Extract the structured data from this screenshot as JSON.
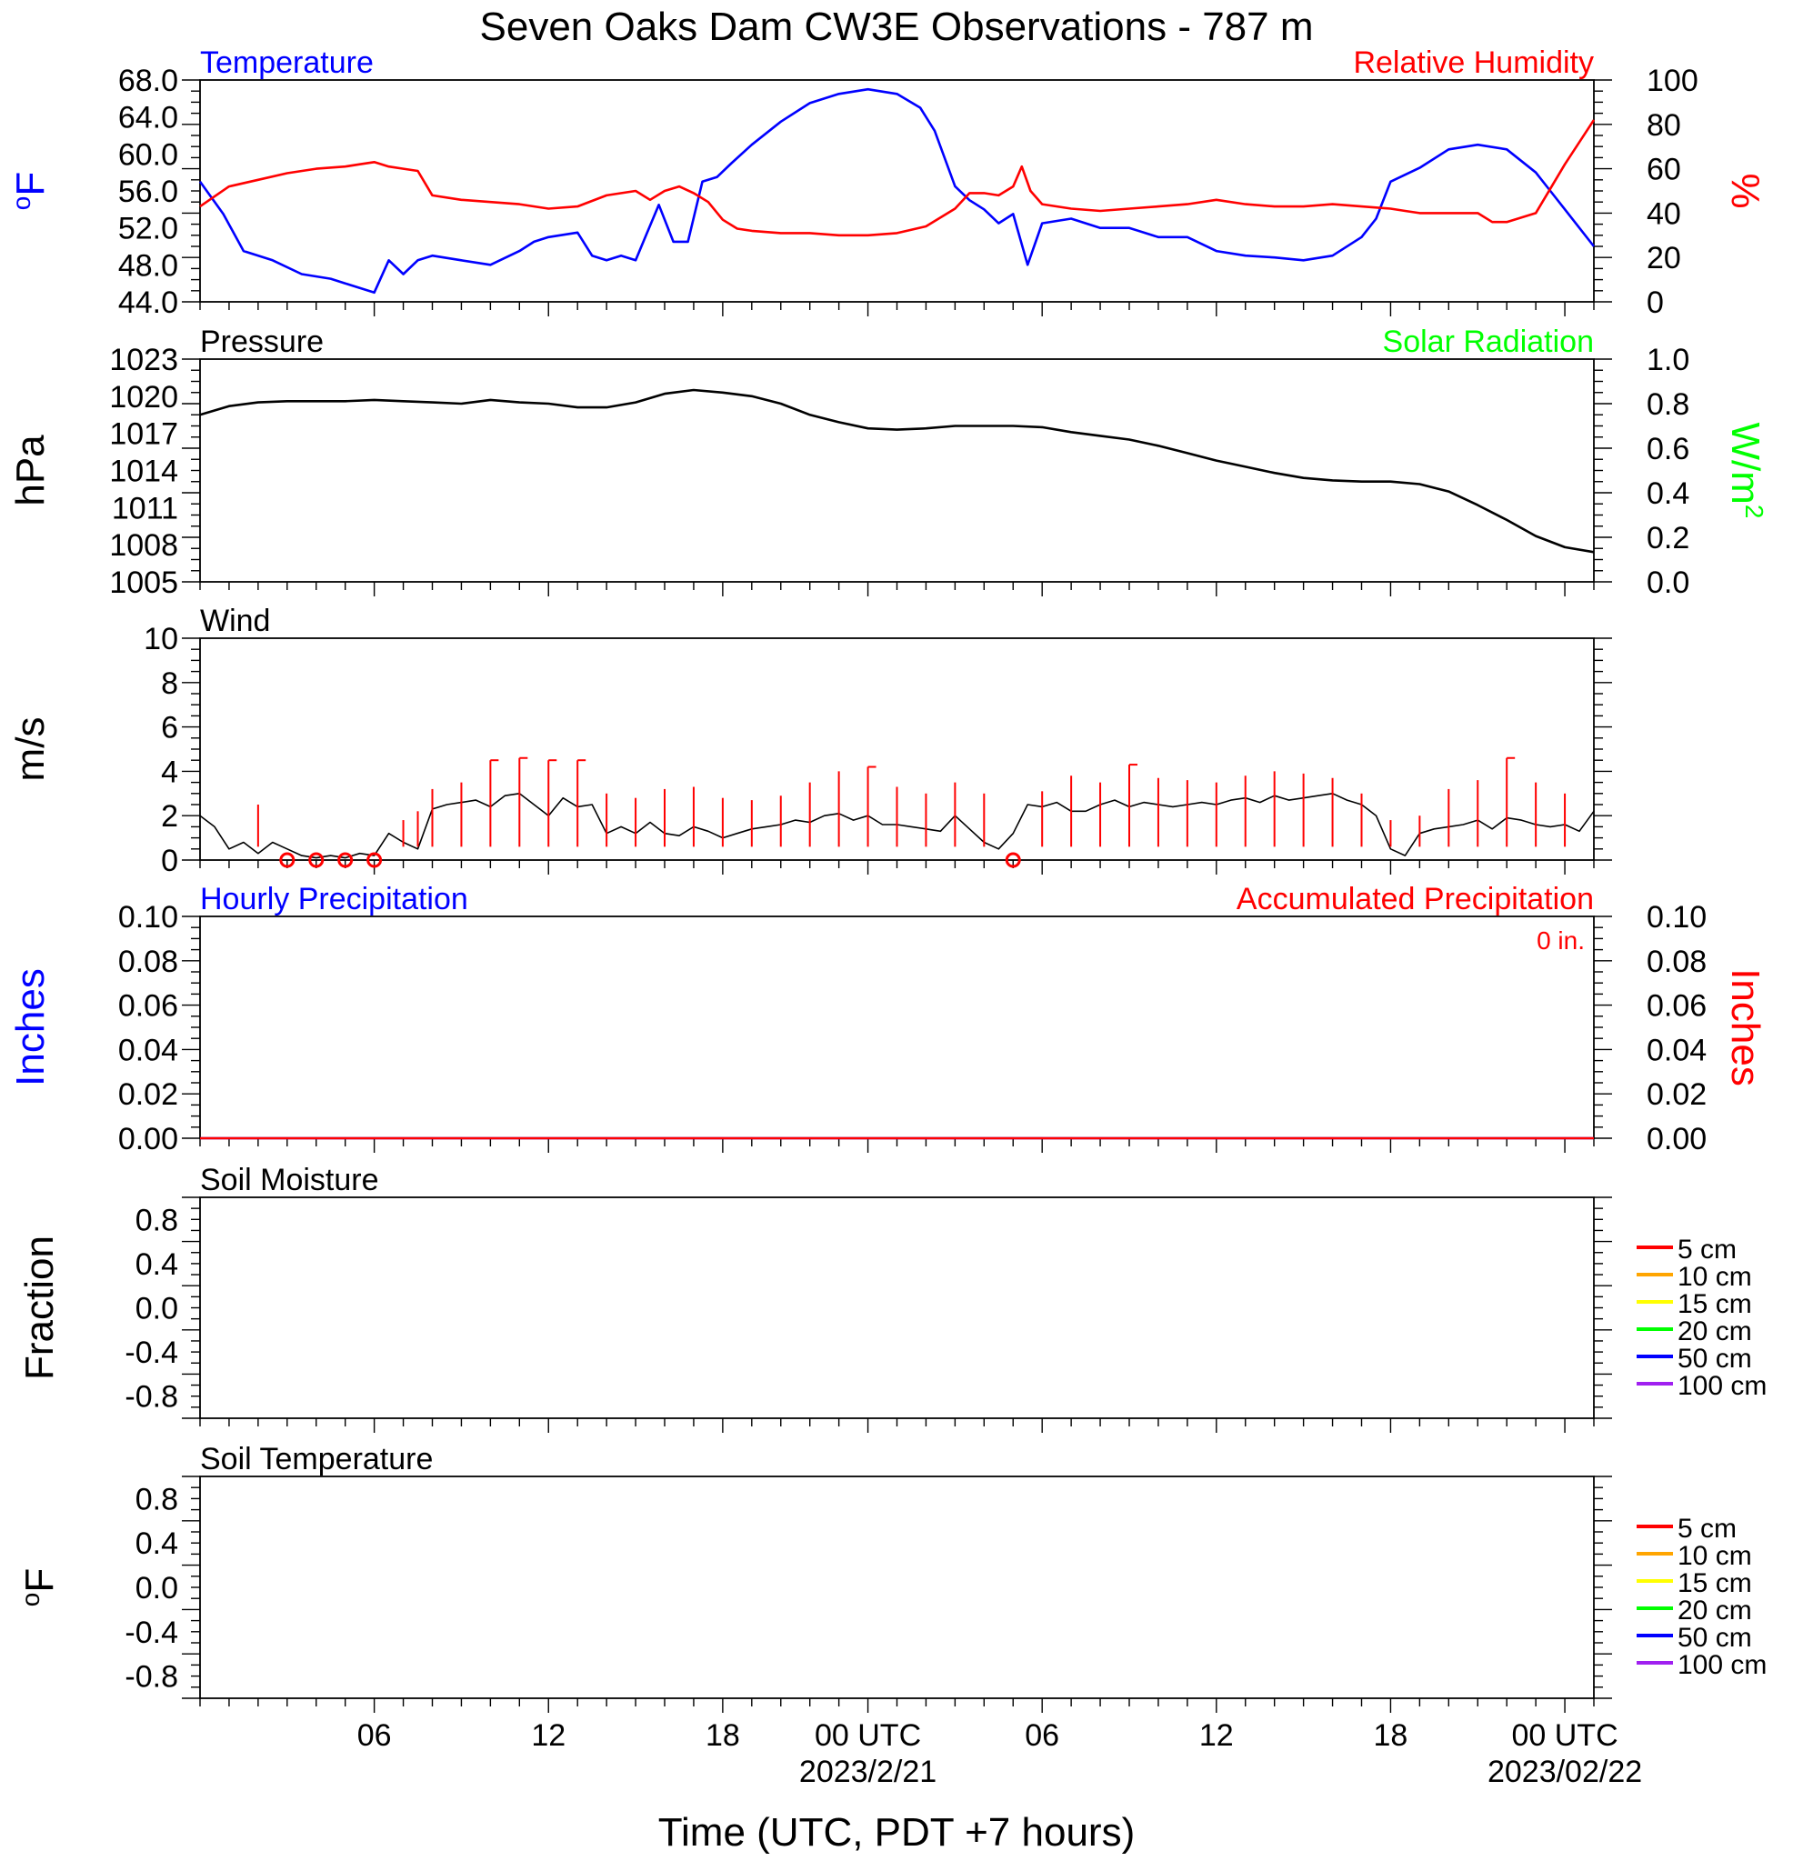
{
  "chart_data": {
    "type": "line",
    "title": "Seven Oaks Dam CW3E Observations - 787 m",
    "time_axis": {
      "label": "Time (UTC, PDT +7 hours)",
      "range_hours": [
        0,
        48
      ],
      "ticks": [
        {
          "hour": 6,
          "label": "06",
          "date": ""
        },
        {
          "hour": 12,
          "label": "12",
          "date": ""
        },
        {
          "hour": 18,
          "label": "18",
          "date": ""
        },
        {
          "hour": 23,
          "label": "00 UTC",
          "date": "2023/2/21"
        },
        {
          "hour": 29,
          "label": "06",
          "date": ""
        },
        {
          "hour": 35,
          "label": "12",
          "date": ""
        },
        {
          "hour": 41,
          "label": "18",
          "date": ""
        },
        {
          "hour": 47,
          "label": "00 UTC",
          "date": "2023/02/22"
        }
      ]
    },
    "panels": [
      {
        "id": "temp_rh",
        "title_left": "Temperature",
        "title_left_color": "#0000ff",
        "title_right": "Relative Humidity",
        "title_right_color": "#ff0000",
        "ylabel_left": "oF",
        "ylabel_right": "%",
        "ylim_left": [
          44,
          68
        ],
        "ylim_right": [
          0,
          100
        ],
        "yticks_left": [
          "44.0",
          "48.0",
          "52.0",
          "56.0",
          "60.0",
          "64.0",
          "68.0"
        ],
        "yticks_right": [
          "0",
          "20",
          "40",
          "60",
          "80",
          "100"
        ],
        "series": [
          {
            "name": "Temperature",
            "axis": "left",
            "color": "#0000ff",
            "x": [
              0,
              0.8,
              1.5,
              2.5,
              3.5,
              4.5,
              5.0,
              5.5,
              6.0,
              6.5,
              7.0,
              7.5,
              8.0,
              9.0,
              10.0,
              11.0,
              11.5,
              12.0,
              13.0,
              13.5,
              14.0,
              14.5,
              15.0,
              15.4,
              15.8,
              16.3,
              16.8,
              17.3,
              17.8,
              18.3,
              19.0,
              20.0,
              21.0,
              22.0,
              23.0,
              24.0,
              24.8,
              25.3,
              26.0,
              26.5,
              27.0,
              27.5,
              28.0,
              28.5,
              29.0,
              30.0,
              31.0,
              32.0,
              33.0,
              34.0,
              35.0,
              36.0,
              37.0,
              38.0,
              39.0,
              40.0,
              40.5,
              41.0,
              42.0,
              43.0,
              44.0,
              45.0,
              46.0,
              46.5,
              47.0,
              48.0
            ],
            "y": [
              57.0,
              53.5,
              49.5,
              48.5,
              47.0,
              46.5,
              46.0,
              45.5,
              45.0,
              48.5,
              47.0,
              48.5,
              49.0,
              48.5,
              48.0,
              49.5,
              50.5,
              51.0,
              51.5,
              49.0,
              48.5,
              49.0,
              48.5,
              51.5,
              54.5,
              50.5,
              50.5,
              57.0,
              57.5,
              59.0,
              61.0,
              63.5,
              65.5,
              66.5,
              67.0,
              66.5,
              65.0,
              62.5,
              56.5,
              55.0,
              54.0,
              52.5,
              53.5,
              48.0,
              52.5,
              53.0,
              52.0,
              52.0,
              51.0,
              51.0,
              49.5,
              49.0,
              48.8,
              48.5,
              49.0,
              51.0,
              53.0,
              57.0,
              58.5,
              60.5,
              61.0,
              60.5,
              58.0,
              56.0,
              54.0,
              50.0
            ]
          },
          {
            "name": "Relative Humidity",
            "axis": "right",
            "color": "#ff0000",
            "x": [
              0,
              1.0,
              2.0,
              3.0,
              4.0,
              5.0,
              5.5,
              6.0,
              6.5,
              7.0,
              7.5,
              8.0,
              9.0,
              10.0,
              11.0,
              12.0,
              13.0,
              14.0,
              15.0,
              15.5,
              16.0,
              16.5,
              17.0,
              17.5,
              18.0,
              18.5,
              19.0,
              20.0,
              21.0,
              22.0,
              23.0,
              24.0,
              25.0,
              26.0,
              26.5,
              27.0,
              27.5,
              28.0,
              28.3,
              28.6,
              29.0,
              30.0,
              31.0,
              32.0,
              33.0,
              34.0,
              35.0,
              36.0,
              37.0,
              38.0,
              39.0,
              40.0,
              41.0,
              41.5,
              42.0,
              43.0,
              44.0,
              44.5,
              45.0,
              46.0,
              47.0,
              48.0
            ],
            "y": [
              43,
              52,
              55,
              58,
              60,
              61,
              62,
              63,
              61,
              60,
              59,
              48,
              46,
              45,
              44,
              42,
              43,
              48,
              50,
              46,
              50,
              52,
              49,
              45,
              37,
              33,
              32,
              31,
              31,
              30,
              30,
              31,
              34,
              42,
              49,
              49,
              48,
              52,
              61,
              50,
              44,
              42,
              41,
              42,
              43,
              44,
              46,
              44,
              43,
              43,
              44,
              43,
              42,
              41,
              40,
              40,
              40,
              36,
              36,
              40,
              62,
              82
            ]
          }
        ]
      },
      {
        "id": "pressure_solar",
        "title_left": "Pressure",
        "title_left_color": "#000000",
        "title_right": "Solar Radiation",
        "title_right_color": "#00ff00",
        "ylabel_left": "hPa",
        "ylabel_right": "W/m2",
        "ylim_left": [
          1005,
          1023
        ],
        "ylim_right": [
          0,
          1
        ],
        "yticks_left": [
          "1005",
          "1008",
          "1011",
          "1014",
          "1017",
          "1020",
          "1023"
        ],
        "yticks_right": [
          "0.0",
          "0.2",
          "0.4",
          "0.6",
          "0.8",
          "1.0"
        ],
        "series": [
          {
            "name": "Pressure",
            "axis": "left",
            "color": "#000000",
            "x": [
              0,
              1.0,
              2.0,
              3.0,
              4.0,
              5.0,
              6.0,
              7.0,
              8.0,
              9.0,
              10.0,
              11.0,
              12.0,
              13.0,
              14.0,
              15.0,
              16.0,
              17.0,
              18.0,
              19.0,
              20.0,
              21.0,
              22.0,
              23.0,
              24.0,
              25.0,
              26.0,
              27.0,
              28.0,
              29.0,
              30.0,
              31.0,
              32.0,
              33.0,
              34.0,
              35.0,
              36.0,
              37.0,
              38.0,
              39.0,
              40.0,
              41.0,
              42.0,
              43.0,
              44.0,
              45.0,
              46.0,
              47.0,
              48.0
            ],
            "y": [
              1018.5,
              1019.2,
              1019.5,
              1019.6,
              1019.6,
              1019.6,
              1019.7,
              1019.6,
              1019.5,
              1019.4,
              1019.7,
              1019.5,
              1019.4,
              1019.1,
              1019.1,
              1019.5,
              1020.2,
              1020.5,
              1020.3,
              1020.0,
              1019.4,
              1018.5,
              1017.9,
              1017.4,
              1017.3,
              1017.4,
              1017.6,
              1017.6,
              1017.6,
              1017.5,
              1017.1,
              1016.8,
              1016.5,
              1016.0,
              1015.4,
              1014.8,
              1014.3,
              1013.8,
              1013.4,
              1013.2,
              1013.1,
              1013.1,
              1012.9,
              1012.3,
              1011.2,
              1010.0,
              1008.7,
              1007.8,
              1007.4
            ]
          }
        ]
      },
      {
        "id": "wind",
        "title_left": "Wind",
        "title_left_color": "#000000",
        "ylabel_left": "m/s",
        "ylim_left": [
          0,
          10
        ],
        "yticks_left": [
          "0",
          "2",
          "4",
          "6",
          "8",
          "10"
        ],
        "series": [
          {
            "name": "Wind",
            "axis": "left",
            "color": "#000000",
            "x": [
              0,
              0.5,
              1.0,
              1.5,
              2.0,
              2.5,
              3.0,
              3.5,
              4.0,
              4.5,
              5.0,
              5.5,
              6.0,
              6.5,
              7.0,
              7.5,
              8.0,
              8.5,
              9.0,
              9.5,
              10.0,
              10.5,
              11.0,
              11.5,
              12.0,
              12.5,
              13.0,
              13.5,
              14.0,
              14.5,
              15.0,
              15.5,
              16.0,
              16.5,
              17.0,
              17.5,
              18.0,
              18.5,
              19.0,
              19.5,
              20.0,
              20.5,
              21.0,
              21.5,
              22.0,
              22.5,
              23.0,
              23.5,
              24.0,
              24.5,
              25.0,
              25.5,
              26.0,
              26.5,
              27.0,
              27.5,
              28.0,
              28.5,
              29.0,
              29.5,
              30.0,
              30.5,
              31.0,
              31.5,
              32.0,
              32.5,
              33.0,
              33.5,
              34.0,
              34.5,
              35.0,
              35.5,
              36.0,
              36.5,
              37.0,
              37.5,
              38.0,
              38.5,
              39.0,
              39.5,
              40.0,
              40.5,
              41.0,
              41.5,
              42.0,
              42.5,
              43.0,
              43.5,
              44.0,
              44.5,
              45.0,
              45.5,
              46.0,
              46.5,
              47.0,
              47.5,
              48.0
            ],
            "y": [
              2.0,
              1.5,
              0.5,
              0.8,
              0.3,
              0.8,
              0.5,
              0.2,
              0.1,
              0.2,
              0.1,
              0.3,
              0.2,
              1.2,
              0.8,
              0.5,
              2.3,
              2.5,
              2.6,
              2.7,
              2.4,
              2.9,
              3.0,
              2.5,
              2.0,
              2.8,
              2.4,
              2.5,
              1.2,
              1.5,
              1.2,
              1.7,
              1.2,
              1.1,
              1.5,
              1.3,
              1.0,
              1.2,
              1.4,
              1.5,
              1.6,
              1.8,
              1.7,
              2.0,
              2.1,
              1.8,
              2.0,
              1.6,
              1.6,
              1.5,
              1.4,
              1.3,
              2.0,
              1.4,
              0.8,
              0.5,
              1.2,
              2.5,
              2.4,
              2.6,
              2.2,
              2.2,
              2.5,
              2.7,
              2.4,
              2.6,
              2.5,
              2.4,
              2.5,
              2.6,
              2.5,
              2.7,
              2.8,
              2.6,
              2.9,
              2.7,
              2.8,
              2.9,
              3.0,
              2.7,
              2.5,
              2.0,
              0.5,
              0.2,
              1.2,
              1.4,
              1.5,
              1.6,
              1.8,
              1.4,
              1.9,
              1.8,
              1.6,
              1.5,
              1.6,
              1.3,
              2.2
            ]
          },
          {
            "name": "Wind barbs",
            "axis": "left",
            "color": "#ff0000",
            "x": [
              2,
              3,
              4,
              5,
              6,
              7,
              7.5,
              8,
              9,
              10,
              11,
              12,
              13,
              14,
              15,
              16,
              17,
              18,
              19,
              20,
              21,
              22,
              23,
              24,
              25,
              26,
              27,
              28,
              29,
              30,
              31,
              32,
              33,
              34,
              35,
              36,
              37,
              38,
              39,
              40,
              41,
              42,
              43,
              44,
              45,
              46,
              47
            ],
            "y": [
              2.5,
              0.1,
              0.1,
              0.1,
              0.1,
              1.8,
              2.2,
              3.2,
              3.5,
              4.5,
              4.6,
              4.5,
              4.5,
              3.0,
              2.8,
              3.2,
              3.3,
              2.8,
              2.7,
              2.9,
              3.5,
              4.0,
              4.2,
              3.3,
              3.0,
              3.5,
              3.0,
              0.1,
              3.1,
              3.8,
              3.5,
              4.3,
              3.7,
              3.6,
              3.5,
              3.8,
              4.0,
              3.9,
              3.7,
              3.0,
              1.8,
              2.0,
              3.2,
              3.6,
              4.6,
              3.5,
              3.0
            ]
          }
        ]
      },
      {
        "id": "precip",
        "title_left": "Hourly Precipitation",
        "title_left_color": "#0000ff",
        "title_right": "Accumulated Precipitation",
        "title_right_color": "#ff0000",
        "annotation": "0 in.",
        "ylabel_left": "Inches",
        "ylabel_right": "Inches",
        "ylim_left": [
          0,
          0.1
        ],
        "ylim_right": [
          0,
          0.1
        ],
        "yticks_left": [
          "0.00",
          "0.02",
          "0.04",
          "0.06",
          "0.08",
          "0.10"
        ],
        "yticks_right": [
          "0.00",
          "0.02",
          "0.04",
          "0.06",
          "0.08",
          "0.10"
        ],
        "series": [
          {
            "name": "Hourly Precipitation",
            "axis": "left",
            "color": "#0000ff",
            "x": [
              0,
              48
            ],
            "y": [
              0,
              0
            ]
          },
          {
            "name": "Accumulated Precipitation",
            "axis": "right",
            "color": "#ff0000",
            "x": [
              0,
              48
            ],
            "y": [
              0,
              0
            ]
          }
        ]
      },
      {
        "id": "soil_moisture",
        "title_left": "Soil Moisture",
        "title_left_color": "#000000",
        "ylabel_left": "Fraction",
        "ylim_left": [
          -1,
          1
        ],
        "yticks_left": [
          "-0.8",
          "-0.4",
          "0.0",
          "0.4",
          "0.8"
        ],
        "legend": [
          {
            "label": "5 cm",
            "color": "#ff0000"
          },
          {
            "label": "10 cm",
            "color": "#ffa500"
          },
          {
            "label": "15 cm",
            "color": "#ffff00"
          },
          {
            "label": "20 cm",
            "color": "#00ff00"
          },
          {
            "label": "50 cm",
            "color": "#0000ff"
          },
          {
            "label": "100 cm",
            "color": "#a020f0"
          }
        ],
        "series": []
      },
      {
        "id": "soil_temperature",
        "title_left": "Soil Temperature",
        "title_left_color": "#000000",
        "ylabel_left": "oF",
        "ylim_left": [
          -1,
          1
        ],
        "yticks_left": [
          "-0.8",
          "-0.4",
          "0.0",
          "0.4",
          "0.8"
        ],
        "legend": [
          {
            "label": "5 cm",
            "color": "#ff0000"
          },
          {
            "label": "10 cm",
            "color": "#ffa500"
          },
          {
            "label": "15 cm",
            "color": "#ffff00"
          },
          {
            "label": "20 cm",
            "color": "#00ff00"
          },
          {
            "label": "50 cm",
            "color": "#0000ff"
          },
          {
            "label": "100 cm",
            "color": "#a020f0"
          }
        ],
        "series": []
      }
    ]
  }
}
